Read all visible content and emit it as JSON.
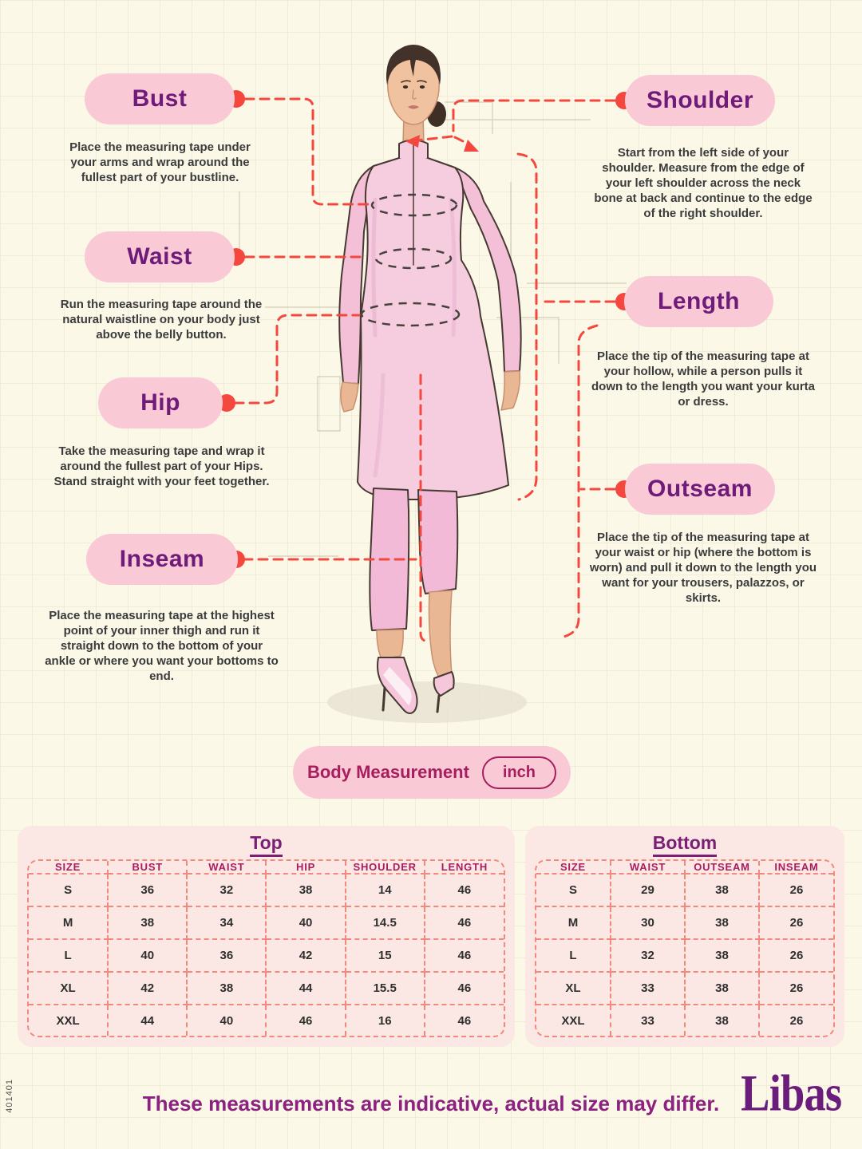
{
  "page": {
    "side_code": "401401",
    "footer_note": "These measurements are indicative, actual size may differ.",
    "brand": "Libas"
  },
  "colors": {
    "accent_red": "#F4473D",
    "pill_pink": "#F9CAD5",
    "label_purple": "#6E1B7A",
    "magenta": "#A81D5E",
    "panel_pink": "#FBE7E3",
    "table_border": "#F18A7D",
    "background": "#FBF8E8",
    "footer_purple": "#8C2180",
    "brand_purple": "#6A1D7A",
    "grid_line": "#F0ECD9"
  },
  "measurements": {
    "left": [
      {
        "label": "Bust",
        "description": "Place the measuring tape under your arms and wrap around the fullest part of your bustline."
      },
      {
        "label": "Waist",
        "description": "Run the measuring tape around the natural waistline on your body just above the belly button."
      },
      {
        "label": "Hip",
        "description": "Take the measuring tape and wrap it around the fullest part of your Hips. Stand straight with your feet together."
      },
      {
        "label": "Inseam",
        "description": "Place the measuring tape at the highest point of your inner thigh and run it straight down to the bottom of your ankle or where you want your bottoms to end."
      }
    ],
    "right": [
      {
        "label": "Shoulder",
        "description": "Start from the left side of your shoulder. Measure from the edge of your left shoulder across the neck bone at back and continue to the edge of the right shoulder."
      },
      {
        "label": "Length",
        "description": "Place the tip of the measuring tape at your hollow, while a person pulls it down to the length you want your kurta or dress."
      },
      {
        "label": "Outseam",
        "description": "Place the tip of the measuring tape at your waist or hip (where the bottom is worn) and pull it down to the length you want for your trousers, palazzos, or skirts."
      }
    ]
  },
  "body_measurement": {
    "label": "Body Measurement",
    "unit": "inch"
  },
  "tables": {
    "top": {
      "title": "Top",
      "headers": [
        "SIZE",
        "BUST",
        "WAIST",
        "HIP",
        "SHOULDER",
        "LENGTH"
      ],
      "rows": [
        [
          "S",
          "36",
          "32",
          "38",
          "14",
          "46"
        ],
        [
          "M",
          "38",
          "34",
          "40",
          "14.5",
          "46"
        ],
        [
          "L",
          "40",
          "36",
          "42",
          "15",
          "46"
        ],
        [
          "XL",
          "42",
          "38",
          "44",
          "15.5",
          "46"
        ],
        [
          "XXL",
          "44",
          "40",
          "46",
          "16",
          "46"
        ]
      ]
    },
    "bottom": {
      "title": "Bottom",
      "headers": [
        "SIZE",
        "WAIST",
        "OUTSEAM",
        "INSEAM"
      ],
      "rows": [
        [
          "S",
          "29",
          "38",
          "26"
        ],
        [
          "M",
          "30",
          "38",
          "26"
        ],
        [
          "L",
          "32",
          "38",
          "26"
        ],
        [
          "XL",
          "33",
          "38",
          "26"
        ],
        [
          "XXL",
          "33",
          "38",
          "26"
        ]
      ]
    }
  }
}
